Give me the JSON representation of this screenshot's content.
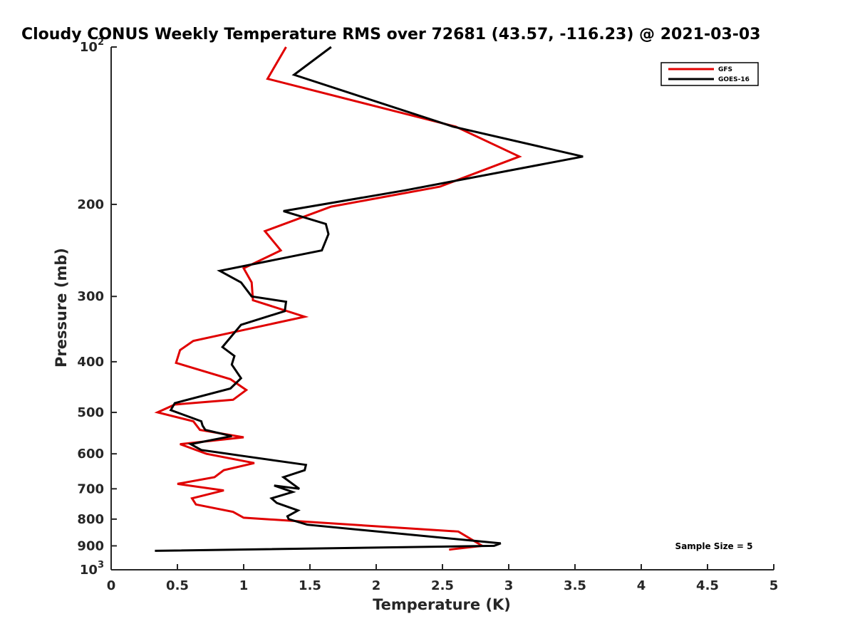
{
  "chart_data": {
    "type": "line",
    "title": "Cloudy CONUS Weekly Temperature RMS over 72681 (43.57, -116.23) @ 2021-03-03",
    "xlabel": "Temperature (K)",
    "ylabel": "Pressure (mb)",
    "xlim": [
      0,
      5
    ],
    "ylim": [
      1000,
      100
    ],
    "y_scale": "log",
    "y_reversed": true,
    "grid": false,
    "legend_position": "top-right",
    "x_ticks": [
      "0",
      "0.5",
      "1",
      "1.5",
      "2",
      "2.5",
      "3",
      "3.5",
      "4",
      "4.5",
      "5"
    ],
    "y_ticks": [
      {
        "value": 100,
        "base": "10",
        "exp": "2"
      },
      {
        "value": 200,
        "label": "200"
      },
      {
        "value": 300,
        "label": "300"
      },
      {
        "value": 400,
        "label": "400"
      },
      {
        "value": 500,
        "label": "500"
      },
      {
        "value": 600,
        "label": "600"
      },
      {
        "value": 700,
        "label": "700"
      },
      {
        "value": 800,
        "label": "800"
      },
      {
        "value": 900,
        "label": "900"
      },
      {
        "value": 1000,
        "base": "10",
        "exp": "3"
      }
    ],
    "annotation": "Sample Size = 5",
    "series": [
      {
        "name": "GFS",
        "color": "#e00000",
        "x": [
          1.32,
          1.18,
          2.6,
          3.08,
          2.48,
          1.66,
          1.16,
          1.28,
          1.0,
          1.06,
          1.07,
          1.46,
          0.62,
          0.52,
          0.49,
          0.9,
          1.02,
          0.92,
          0.48,
          0.35,
          0.62,
          0.67,
          1.0,
          0.52,
          0.72,
          1.08,
          0.85,
          0.78,
          0.5,
          0.85,
          0.61,
          0.64,
          0.92,
          1.0,
          2.62,
          2.8,
          2.55
        ],
        "y": [
          100,
          115,
          142,
          162,
          185,
          202,
          225,
          245,
          265,
          282,
          305,
          328,
          365,
          380,
          402,
          432,
          453,
          473,
          483,
          500,
          520,
          540,
          558,
          575,
          600,
          625,
          645,
          665,
          685,
          705,
          730,
          750,
          775,
          795,
          845,
          900,
          915
        ]
      },
      {
        "name": "GOES-16",
        "color": "#000000",
        "x": [
          1.66,
          1.38,
          2.58,
          3.56,
          2.22,
          1.3,
          1.62,
          1.64,
          1.59,
          0.82,
          0.98,
          1.06,
          1.32,
          1.31,
          0.98,
          0.84,
          0.93,
          0.91,
          0.98,
          0.9,
          0.48,
          0.45,
          0.68,
          0.69,
          0.71,
          0.91,
          0.6,
          0.68,
          0.98,
          1.47,
          1.46,
          1.3,
          1.42,
          1.23,
          1.37,
          1.21,
          1.25,
          1.41,
          1.33,
          1.34,
          1.48,
          2.94,
          2.89,
          0.33
        ],
        "y": [
          100,
          113,
          142,
          162,
          188,
          206,
          218,
          228,
          245,
          268,
          282,
          300,
          307,
          320,
          340,
          375,
          390,
          405,
          430,
          450,
          480,
          495,
          520,
          530,
          540,
          555,
          575,
          590,
          605,
          630,
          645,
          665,
          700,
          690,
          710,
          730,
          745,
          770,
          790,
          800,
          820,
          890,
          900,
          920
        ]
      }
    ]
  }
}
